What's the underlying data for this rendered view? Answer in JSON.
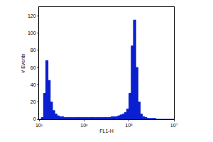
{
  "chart_data": {
    "type": "histogram",
    "x_label": "FL1-H",
    "y_label": "# Events",
    "bins": [
      10,
      12.6,
      15.8,
      20,
      25.1,
      31.6,
      39.8,
      50.1,
      63.1,
      79.4,
      100,
      126,
      158,
      200,
      251,
      316,
      398,
      501,
      631,
      794,
      1000,
      1260,
      1580,
      2000,
      2510,
      3160,
      3980,
      5010,
      6310,
      7940,
      10000,
      12600,
      15800,
      20000,
      25100,
      31600,
      39800,
      50100,
      63100,
      79400,
      100000,
      126000,
      158000,
      200000,
      251000,
      316000,
      398000,
      501000,
      631000,
      794000,
      1000000,
      1260000,
      1580000,
      2000000,
      2510000,
      3160000,
      3980000,
      5010000,
      6310000,
      7940000,
      10000000
    ],
    "values": [
      0,
      2,
      30,
      68,
      45,
      20,
      10,
      6,
      4,
      3,
      3,
      2,
      2,
      2,
      2,
      2,
      2,
      2,
      2,
      2,
      2,
      2,
      2,
      2,
      2,
      2,
      2,
      2,
      2,
      2,
      2,
      2,
      3,
      3,
      3,
      4,
      5,
      6,
      8,
      12,
      30,
      85,
      115,
      60,
      20,
      6,
      3,
      2,
      1,
      1,
      1,
      1,
      0,
      0,
      0,
      0,
      0,
      0,
      0,
      0
    ],
    "color": "#0a1fd0",
    "log": "x",
    "xlim": [
      10,
      10000000
    ],
    "xticks": [
      {
        "value": 10,
        "label": "10¹"
      },
      {
        "value": 1000,
        "label": "10³"
      },
      {
        "value": 100000,
        "label": "10⁵"
      },
      {
        "value": 10000000,
        "label": "10⁷"
      }
    ],
    "ylim": [
      0,
      130
    ],
    "yticks": [
      0,
      20,
      40,
      60,
      80,
      100,
      120
    ],
    "grid": false
  }
}
